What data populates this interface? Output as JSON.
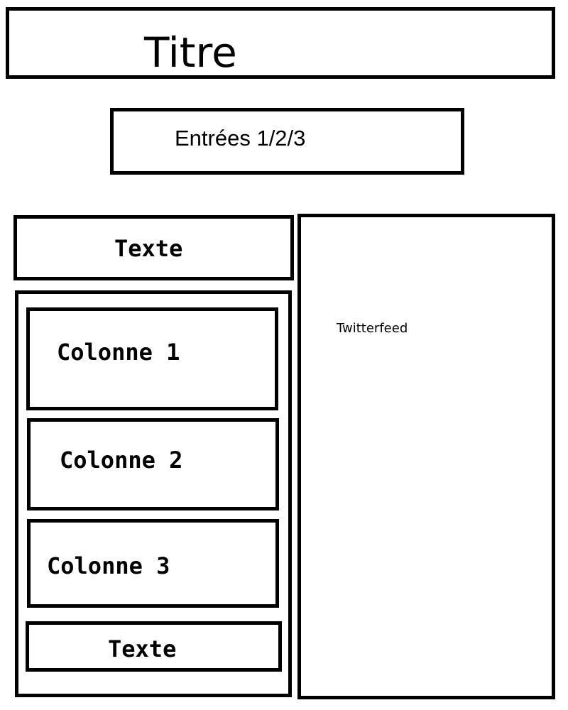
{
  "header": {
    "title": "Titre"
  },
  "entries": {
    "label": "Entrées 1/2/3"
  },
  "left_panel": {
    "top_text": "Texte",
    "columns": [
      {
        "label": "Colonne 1"
      },
      {
        "label": "Colonne 2"
      },
      {
        "label": "Colonne 3"
      }
    ],
    "bottom_text": "Texte"
  },
  "right_panel": {
    "label": "Twitterfeed"
  },
  "colors": {
    "stroke": "#000000",
    "background": "#ffffff"
  }
}
